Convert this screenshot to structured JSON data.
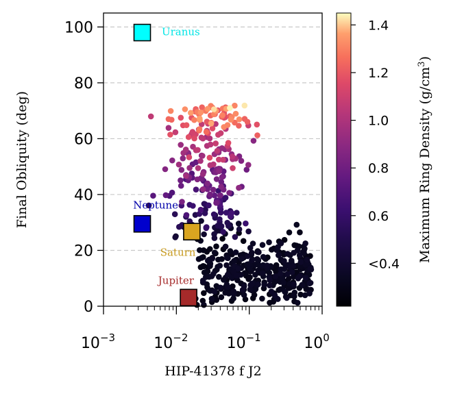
{
  "chart_data": {
    "type": "scatter",
    "xlabel": "HIP-41378 f J2",
    "ylabel": "Final Obliquity (deg)",
    "x_scale": "log",
    "xlim": [
      0.001,
      1
    ],
    "ylim": [
      0,
      105
    ],
    "x_ticks": [
      {
        "value": 0.001,
        "base": "10",
        "exp": "−3"
      },
      {
        "value": 0.01,
        "base": "10",
        "exp": "−2"
      },
      {
        "value": 0.1,
        "base": "10",
        "exp": "−1"
      },
      {
        "value": 1,
        "base": "10",
        "exp": "0"
      }
    ],
    "y_ticks": [
      0,
      20,
      40,
      60,
      80,
      100
    ],
    "grid": "horizontal-dashed",
    "colorbar": {
      "label_main": "Maximum Ring Density (g/cm",
      "label_sup": "3",
      "label_end": ")",
      "colormap": "magma",
      "range": [
        0.22,
        1.45
      ],
      "ticks": [
        {
          "value": 0.4,
          "label": "<0.4"
        },
        {
          "value": 0.6,
          "label": "0.6"
        },
        {
          "value": 0.8,
          "label": "0.8"
        },
        {
          "value": 1.0,
          "label": "1.0"
        },
        {
          "value": 1.2,
          "label": "1.2"
        },
        {
          "value": 1.4,
          "label": "1.4"
        }
      ]
    },
    "planets": [
      {
        "name": "Uranus",
        "x": 0.0034,
        "y": 98,
        "color": "#00ffff",
        "label_color": "#00e5e5",
        "label_x": 0.0063,
        "label_y": 97,
        "anchor": "start"
      },
      {
        "name": "Neptune",
        "x": 0.0034,
        "y": 29.5,
        "color": "#0000cd",
        "label_color": "#0000aa",
        "label_x": 0.0052,
        "label_y": 35,
        "anchor": "middle"
      },
      {
        "name": "Saturn",
        "x": 0.0163,
        "y": 26.7,
        "color": "#daa520",
        "label_color": "#c79a1e",
        "label_x": 0.0105,
        "label_y": 18,
        "anchor": "middle"
      },
      {
        "name": "Jupiter",
        "x": 0.0147,
        "y": 3.1,
        "color": "#a52a2a",
        "label_color": "#a52a2a",
        "label_x": 0.0099,
        "label_y": 8,
        "anchor": "middle"
      }
    ],
    "points_note": "scatter cloud generated procedurally in script"
  }
}
